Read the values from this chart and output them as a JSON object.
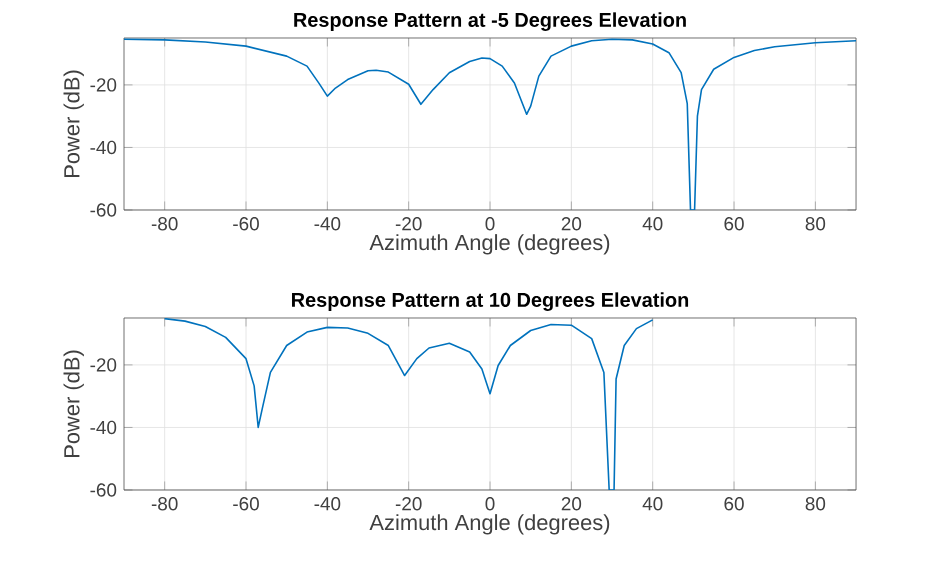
{
  "chart_data": [
    {
      "type": "line",
      "title": "Response Pattern at -5 Degrees Elevation",
      "xlabel": "Azimuth Angle (degrees)",
      "ylabel": "Power (dB)",
      "xlim": [
        -90,
        90
      ],
      "ylim": [
        -60,
        -5
      ],
      "xticks": [
        -80,
        -60,
        -40,
        -20,
        0,
        20,
        40,
        60,
        80
      ],
      "yticks": [
        -60,
        -40,
        -20
      ],
      "grid": true,
      "x": [
        -90,
        -80,
        -70,
        -60,
        -50,
        -45,
        -42,
        -40,
        -38,
        -35,
        -30,
        -28,
        -25,
        -20,
        -17,
        -14,
        -10,
        -5,
        -2,
        0,
        3,
        6,
        9,
        10,
        12,
        15,
        20,
        25,
        30,
        35,
        40,
        44,
        47,
        48.5,
        49.3,
        50.3,
        51,
        52,
        55,
        60,
        65,
        70,
        80,
        90
      ],
      "series": [
        {
          "color": "#0072bd",
          "values": [
            -5.4,
            -5.6,
            -6.3,
            -7.6,
            -10.8,
            -14,
            -19.6,
            -23.6,
            -21,
            -18.3,
            -15.5,
            -15.3,
            -15.9,
            -19.8,
            -26.2,
            -21.5,
            -16.1,
            -12.5,
            -11.4,
            -11.6,
            -14,
            -19.4,
            -29.4,
            -26.8,
            -17.2,
            -10.8,
            -7.6,
            -5.9,
            -5.4,
            -5.6,
            -6.9,
            -9.7,
            -16.1,
            -26,
            -60,
            -60,
            -30,
            -21.5,
            -15,
            -11.2,
            -9,
            -7.8,
            -6.5,
            -5.9
          ]
        }
      ]
    },
    {
      "type": "line",
      "title": "Response Pattern at 10 Degrees Elevation",
      "xlabel": "Azimuth Angle (degrees)",
      "ylabel": "Power (dB)",
      "xlim": [
        -90,
        90
      ],
      "ylim": [
        -60,
        -5
      ],
      "xticks": [
        -80,
        -60,
        -40,
        -20,
        0,
        20,
        40,
        60,
        80
      ],
      "yticks": [
        -60,
        -40,
        -20
      ],
      "grid": true,
      "x": [
        -80,
        -75,
        -70,
        -65,
        -60,
        -58,
        -57,
        -56,
        -54,
        -50,
        -45,
        -40,
        -35,
        -30,
        -25,
        -21,
        -18,
        -15,
        -10,
        -5,
        -2,
        0,
        2,
        5,
        10,
        15,
        20,
        25,
        28,
        29.3,
        30.5,
        31,
        33,
        36,
        40
      ],
      "series": [
        {
          "color": "#0072bd",
          "values": [
            -5.2,
            -6,
            -7.7,
            -11.2,
            -18,
            -26.7,
            -40,
            -34,
            -22.4,
            -13.8,
            -9.5,
            -8,
            -8.2,
            -9.9,
            -13.8,
            -23.4,
            -18,
            -14.6,
            -13.1,
            -15.9,
            -21.3,
            -29.2,
            -20.2,
            -13.8,
            -9,
            -7.1,
            -7.3,
            -11.6,
            -22.4,
            -60,
            -60,
            -24.5,
            -13.8,
            -8.4,
            -5.6
          ]
        }
      ]
    }
  ]
}
